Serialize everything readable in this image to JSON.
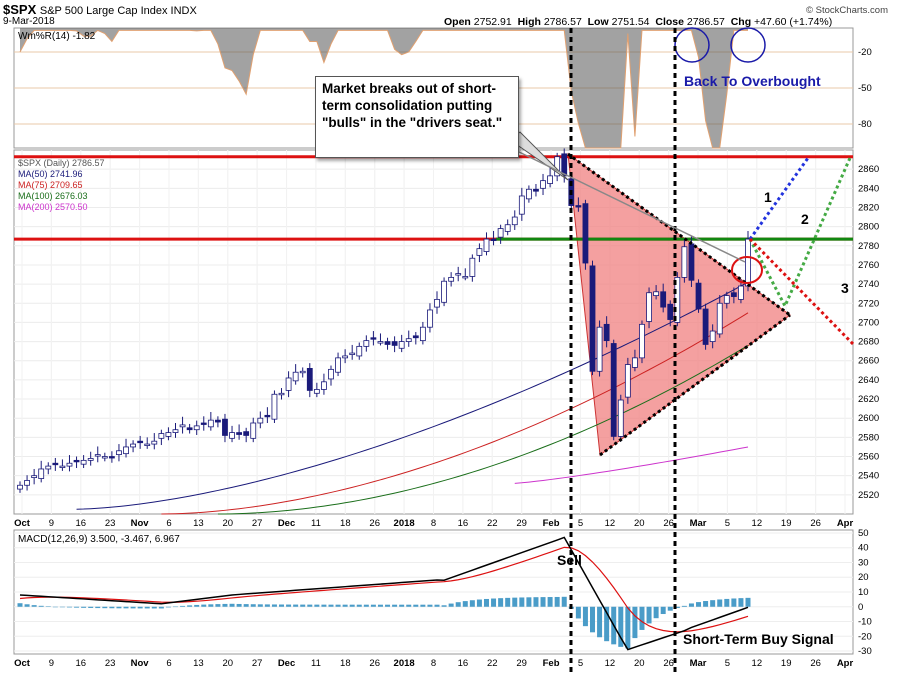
{
  "header": {
    "symbol": "$SPX",
    "description": "S&P 500 Large Cap Index INDX",
    "date": "9-Mar-2018",
    "open_label": "Open",
    "open": "2752.91",
    "high_label": "High",
    "high": "2786.57",
    "low_label": "Low",
    "low": "2751.54",
    "close_label": "Close",
    "close": "2786.57",
    "chg_label": "Chg",
    "chg": "+47.60 (+1.74%)",
    "brand": "© StockCharts.com"
  },
  "colors": {
    "candle_up": "#ffffff",
    "candle_down": "#1a1a7a",
    "ma50": "#1a1a7a",
    "ma75": "#cc2222",
    "ma100": "#1a6e1a",
    "ma200": "#cc33cc",
    "resistance": "#dd1111",
    "support_break": "#118811",
    "triangle_fill": "#f08080",
    "willr": "#e0a070",
    "macd_line": "#000000",
    "signal_line": "#dd1111",
    "hist": "#4a9cc8"
  },
  "legend": {
    "spx": "$SPX (Daily) 2786.57",
    "ma50": "MA(50) 2741.96",
    "ma75": "MA(75) 2709.65",
    "ma100": "MA(100) 2676.03",
    "ma200": "MA(200) 2570.50",
    "willr": "Wm%R(14) -1.82",
    "macd": "MACD(12,26,9) 3.500, -3.467, 6.967"
  },
  "annotations": {
    "callout": "Market breaks out of short-term consolidation putting \"bulls\" in the \"drivers seat.\"",
    "overbought": "Back To Overbought",
    "sell": "Sell",
    "buy": "Short-Term Buy Signal",
    "path1": "1",
    "path2": "2",
    "path3": "3"
  },
  "chart_data": {
    "type": "candlestick",
    "title": "S&P 500 Large Cap Index (Daily)",
    "ylim": [
      2500,
      2880
    ],
    "y_ticks": [
      2520,
      2540,
      2560,
      2580,
      2600,
      2620,
      2640,
      2660,
      2680,
      2700,
      2720,
      2740,
      2760,
      2780,
      2800,
      2820,
      2840,
      2860
    ],
    "x_labels": [
      "Oct",
      "9",
      "16",
      "23",
      "Nov",
      "6",
      "13",
      "20",
      "27",
      "Dec",
      "11",
      "18",
      "26",
      "2018",
      "8",
      "16",
      "22",
      "29",
      "Feb",
      "5",
      "12",
      "20",
      "26",
      "Mar",
      "5",
      "12",
      "19",
      "26",
      "Apr"
    ],
    "closes": [
      2530,
      2535,
      2540,
      2547,
      2550,
      2552,
      2550,
      2553,
      2555,
      2556,
      2558,
      2562,
      2560,
      2559,
      2566,
      2570,
      2573,
      2575,
      2573,
      2576,
      2584,
      2585,
      2588,
      2593,
      2588,
      2592,
      2594,
      2598,
      2596,
      2582,
      2585,
      2583,
      2582,
      2595,
      2600,
      2602,
      2625,
      2626,
      2642,
      2648,
      2649,
      2629,
      2630,
      2638,
      2651,
      2663,
      2665,
      2668,
      2675,
      2681,
      2683,
      2680,
      2677,
      2676,
      2680,
      2683,
      2684,
      2695,
      2713,
      2724,
      2743,
      2747,
      2751,
      2748,
      2767,
      2777,
      2787,
      2786,
      2798,
      2802,
      2810,
      2832,
      2839,
      2837,
      2848,
      2853,
      2873,
      2853,
      2822,
      2821,
      2762,
      2649,
      2695,
      2681,
      2581,
      2619,
      2656,
      2663,
      2698,
      2731,
      2732,
      2716,
      2703,
      2747,
      2779,
      2744,
      2714,
      2677,
      2691,
      2720,
      2728,
      2727,
      2738,
      2787
    ],
    "resistance_levels": [
      2873,
      2787
    ],
    "support_level": 2787,
    "moving_averages": [
      {
        "name": "MA(50)",
        "last": 2741.96
      },
      {
        "name": "MA(75)",
        "last": 2709.65
      },
      {
        "name": "MA(100)",
        "last": 2676.03
      },
      {
        "name": "MA(200)",
        "last": 2570.5
      }
    ],
    "willr": {
      "name": "Wm%R(14)",
      "last": -1.82,
      "ticks": [
        -20,
        -50,
        -80
      ]
    },
    "macd": {
      "name": "MACD(12,26,9)",
      "macd": 3.5,
      "signal": -3.467,
      "hist": 6.967,
      "ylim": [
        -32,
        52
      ],
      "ticks": [
        50,
        40,
        30,
        20,
        10,
        0,
        -10,
        -20,
        -30
      ]
    }
  }
}
